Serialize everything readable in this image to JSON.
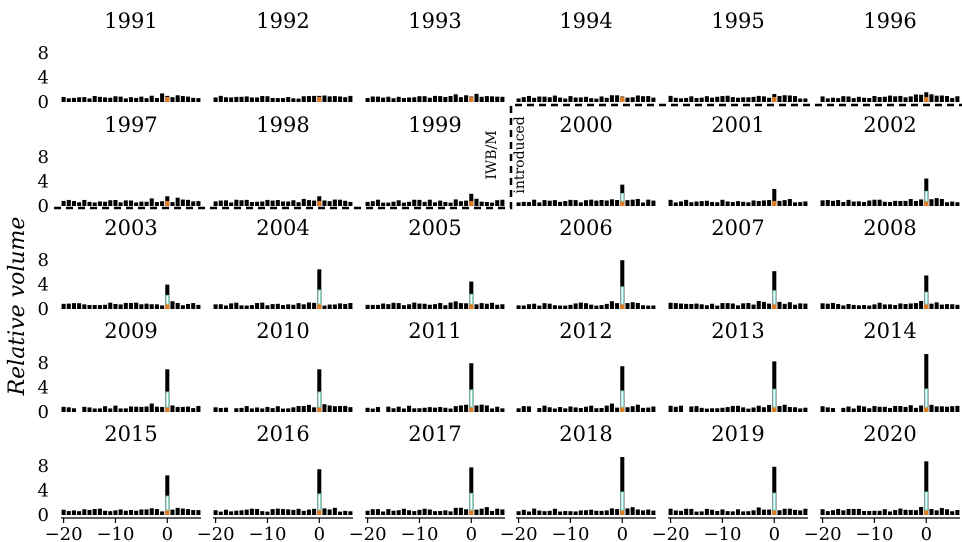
{
  "figure": {
    "ylabel": "Relative volume",
    "annotation_lines": [
      "IWB/M",
      "introduced"
    ],
    "colors": {
      "bar": "#000000",
      "event_bar": "#e07b1f",
      "highlight_box": "#7fd6c4",
      "boundary": "#000000"
    },
    "x_ticks": [
      "−20",
      "−10",
      "0"
    ],
    "y_ticks": [
      "0",
      "4",
      "8"
    ]
  },
  "chart_data": {
    "type": "bar",
    "layout": "small-multiples 6 columns x 5 rows",
    "xlabel": "",
    "ylabel": "Relative volume",
    "xlim": [
      -20,
      6
    ],
    "ylim": [
      0,
      9
    ],
    "x_ticks": [
      -20,
      -10,
      0
    ],
    "y_ticks": [
      0,
      4,
      8
    ],
    "boundary": "dashed step line between 1999 and 2000 panels",
    "panels": [
      {
        "title": "1991",
        "peak": 1.0
      },
      {
        "title": "1992",
        "peak": 1.0
      },
      {
        "title": "1993",
        "peak": 0.9
      },
      {
        "title": "1994",
        "peak": 0.9
      },
      {
        "title": "1995",
        "peak": 1.3
      },
      {
        "title": "1996",
        "peak": 1.6
      },
      {
        "title": "1997",
        "peak": 1.6
      },
      {
        "title": "1998",
        "peak": 1.6
      },
      {
        "title": "1999",
        "peak": 2.0
      },
      {
        "title": "2000",
        "peak": 3.5
      },
      {
        "title": "2001",
        "peak": 2.8
      },
      {
        "title": "2002",
        "peak": 4.5
      },
      {
        "title": "2003",
        "peak": 4.0
      },
      {
        "title": "2004",
        "peak": 6.5
      },
      {
        "title": "2005",
        "peak": 4.5
      },
      {
        "title": "2006",
        "peak": 8.0
      },
      {
        "title": "2007",
        "peak": 6.2
      },
      {
        "title": "2008",
        "peak": 5.5
      },
      {
        "title": "2009",
        "peak": 7.0
      },
      {
        "title": "2010",
        "peak": 7.0
      },
      {
        "title": "2011",
        "peak": 8.0
      },
      {
        "title": "2012",
        "peak": 7.5
      },
      {
        "title": "2013",
        "peak": 8.3
      },
      {
        "title": "2014",
        "peak": 9.5
      },
      {
        "title": "2015",
        "peak": 6.5
      },
      {
        "title": "2016",
        "peak": 7.5
      },
      {
        "title": "2017",
        "peak": 7.8
      },
      {
        "title": "2018",
        "peak": 9.5
      },
      {
        "title": "2019",
        "peak": 7.9
      },
      {
        "title": "2020",
        "peak": 8.8
      }
    ]
  }
}
